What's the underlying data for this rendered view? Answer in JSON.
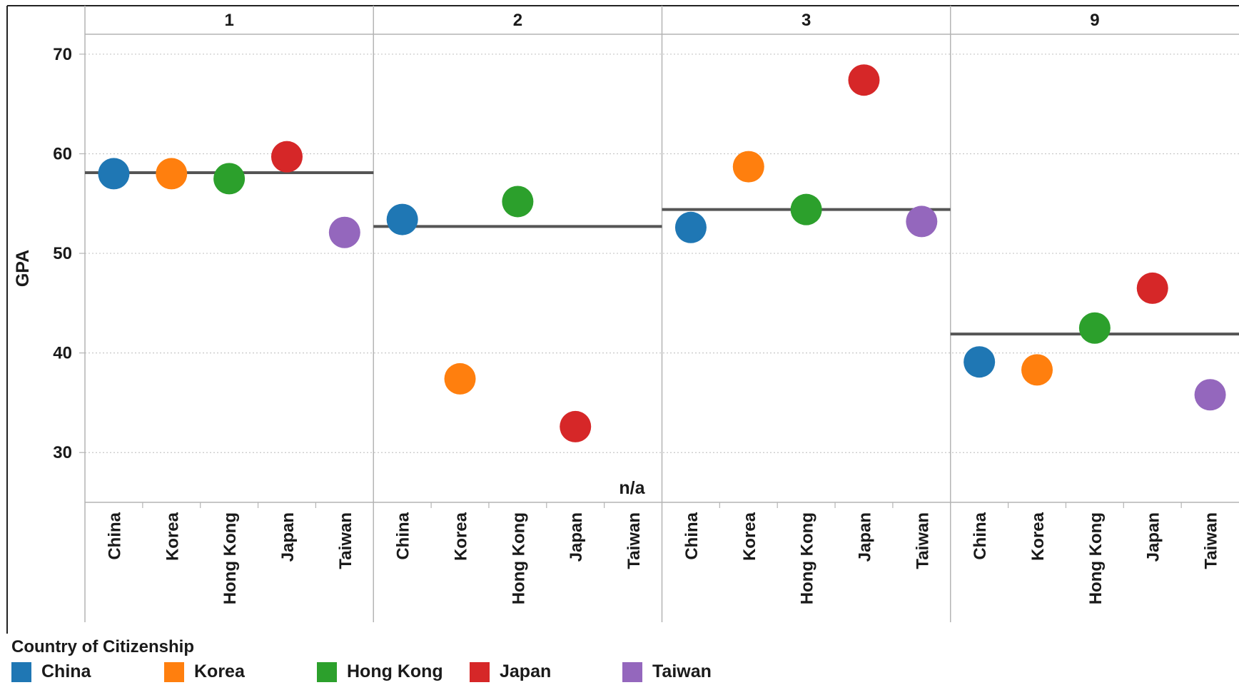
{
  "chart_data": {
    "type": "scatter",
    "ylabel": "GPA",
    "ylim": [
      25,
      72
    ],
    "yticks": [
      30,
      40,
      50,
      60,
      70
    ],
    "grid": true,
    "categories": [
      "China",
      "Korea",
      "Hong Kong",
      "Japan",
      "Taiwan"
    ],
    "panels": [
      {
        "label": "1",
        "values": [
          58.0,
          58.0,
          57.5,
          59.7,
          52.1
        ],
        "reference_line": 58.1,
        "note": ""
      },
      {
        "label": "2",
        "values": [
          53.4,
          37.4,
          55.2,
          32.6,
          null
        ],
        "reference_line": 52.7,
        "note": "n/a"
      },
      {
        "label": "3",
        "values": [
          52.6,
          58.7,
          54.4,
          67.4,
          53.2
        ],
        "reference_line": 54.4,
        "note": ""
      },
      {
        "label": "9",
        "values": [
          39.1,
          38.3,
          42.5,
          46.5,
          35.8
        ],
        "reference_line": 41.9,
        "note": ""
      }
    ],
    "legend_title": "Country of Citizenship",
    "legend": [
      {
        "name": "China",
        "color": "#1f77b4"
      },
      {
        "name": "Korea",
        "color": "#ff7f0e"
      },
      {
        "name": "Hong Kong",
        "color": "#2ca02c"
      },
      {
        "name": "Japan",
        "color": "#d62728"
      },
      {
        "name": "Taiwan",
        "color": "#9467bd"
      }
    ],
    "colors": {
      "grid": "#c8c8c8",
      "border": "#b4b4b4",
      "reference_line": "#555555",
      "frame": "#222222"
    }
  }
}
